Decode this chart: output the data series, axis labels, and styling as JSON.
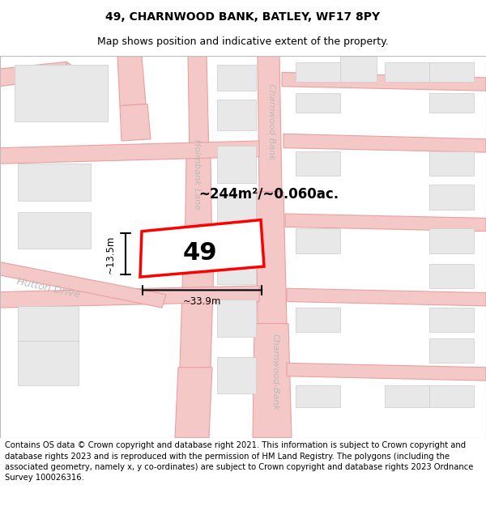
{
  "title": "49, CHARNWOOD BANK, BATLEY, WF17 8PY",
  "subtitle": "Map shows position and indicative extent of the property.",
  "footer": "Contains OS data © Crown copyright and database right 2021. This information is subject to Crown copyright and database rights 2023 and is reproduced with the permission of HM Land Registry. The polygons (including the associated geometry, namely x, y co-ordinates) are subject to Crown copyright and database rights 2023 Ordnance Survey 100026316.",
  "map_bg": "#ffffff",
  "road_line_color": "#e8a0a0",
  "road_fill_color": "#f5c8c8",
  "block_color": "#e8e8e8",
  "block_edge_color": "#cccccc",
  "plot_outline_color": "#ff0000",
  "plot_label": "49",
  "area_label": "~244m²/~0.060ac.",
  "dim_width": "~33.9m",
  "dim_height": "~13.5m",
  "title_fontsize": 10,
  "subtitle_fontsize": 9,
  "footer_fontsize": 7.2,
  "road_label_color": "#bbbbbb",
  "street_label_fontsize": 8
}
